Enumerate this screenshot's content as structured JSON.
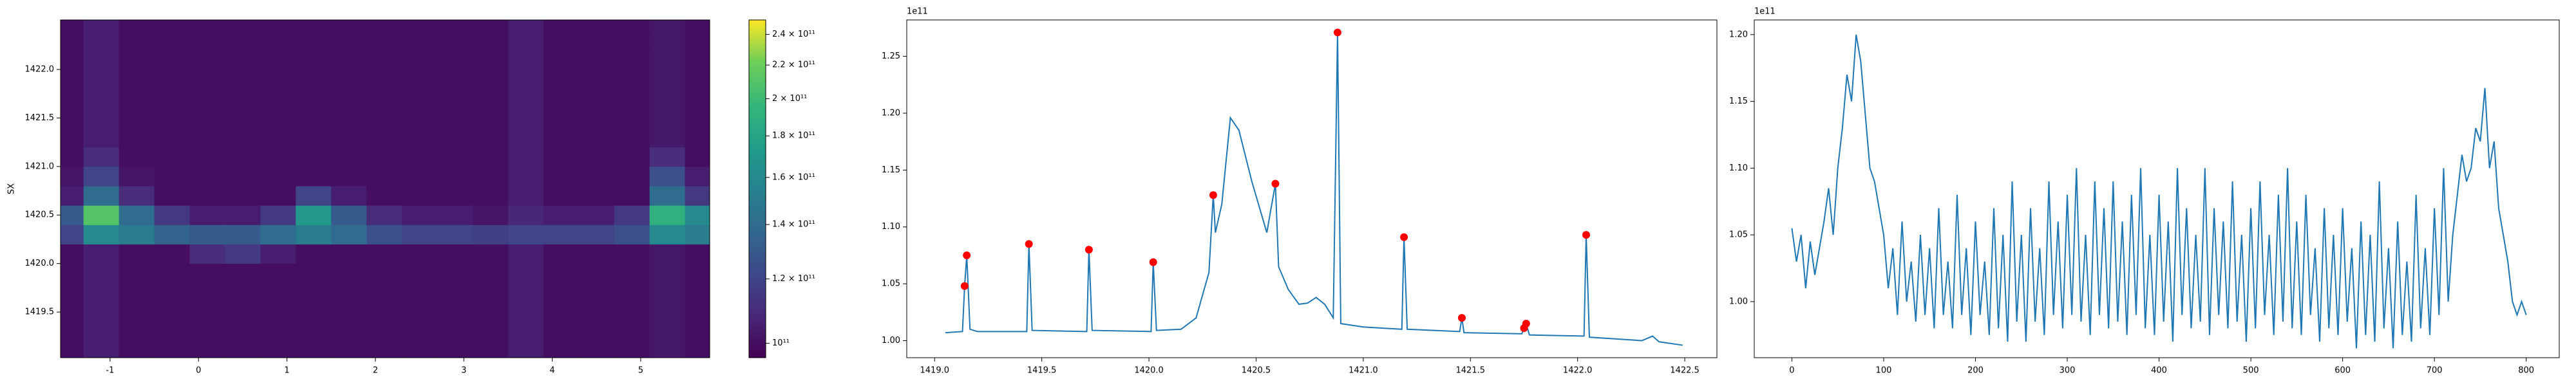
{
  "chart_data": [
    {
      "type": "heatmap",
      "ylabel": "SX",
      "x": [
        -1.5,
        -1.1,
        -0.7,
        -0.3,
        0.1,
        0.5,
        0.9,
        1.3,
        1.7,
        2.1,
        2.5,
        2.9,
        3.3,
        3.7,
        4.1,
        4.5,
        4.9,
        5.3,
        5.7
      ],
      "y": [
        1419.1,
        1419.3,
        1419.5,
        1419.7,
        1419.9,
        1420.1,
        1420.3,
        1420.5,
        1420.7,
        1420.9,
        1421.1,
        1421.3,
        1421.5,
        1421.7,
        1421.9,
        1422.1,
        1422.3,
        1422.5
      ],
      "z": [
        [
          100000000000.0,
          105000000000.0,
          100000000000.0,
          100000000000.0,
          100000000000.0,
          100000000000.0,
          100000000000.0,
          100000000000.0,
          100000000000.0,
          100000000000.0,
          100000000000.0,
          100000000000.0,
          100000000000.0,
          105000000000.0,
          100000000000.0,
          100000000000.0,
          100000000000.0,
          103000000000.0,
          100000000000.0
        ],
        [
          100000000000.0,
          105000000000.0,
          100000000000.0,
          100000000000.0,
          100000000000.0,
          100000000000.0,
          100000000000.0,
          100000000000.0,
          100000000000.0,
          100000000000.0,
          100000000000.0,
          100000000000.0,
          100000000000.0,
          105000000000.0,
          100000000000.0,
          100000000000.0,
          100000000000.0,
          103000000000.0,
          100000000000.0
        ],
        [
          100000000000.0,
          105000000000.0,
          100000000000.0,
          100000000000.0,
          100000000000.0,
          100000000000.0,
          100000000000.0,
          100000000000.0,
          100000000000.0,
          100000000000.0,
          100000000000.0,
          100000000000.0,
          100000000000.0,
          105000000000.0,
          100000000000.0,
          100000000000.0,
          100000000000.0,
          103000000000.0,
          100000000000.0
        ],
        [
          100000000000.0,
          105000000000.0,
          100000000000.0,
          100000000000.0,
          100000000000.0,
          100000000000.0,
          100000000000.0,
          100000000000.0,
          100000000000.0,
          100000000000.0,
          100000000000.0,
          100000000000.0,
          100000000000.0,
          105000000000.0,
          100000000000.0,
          100000000000.0,
          100000000000.0,
          103000000000.0,
          100000000000.0
        ],
        [
          100000000000.0,
          105000000000.0,
          100000000000.0,
          100000000000.0,
          100000000000.0,
          100000000000.0,
          100000000000.0,
          100000000000.0,
          100000000000.0,
          100000000000.0,
          100000000000.0,
          100000000000.0,
          100000000000.0,
          105000000000.0,
          100000000000.0,
          100000000000.0,
          100000000000.0,
          103000000000.0,
          100000000000.0
        ],
        [
          100000000000.0,
          105000000000.0,
          100000000000.0,
          100000000000.0,
          110000000000.0,
          115000000000.0,
          105000000000.0,
          100000000000.0,
          100000000000.0,
          100000000000.0,
          100000000000.0,
          100000000000.0,
          100000000000.0,
          105000000000.0,
          100000000000.0,
          100000000000.0,
          100000000000.0,
          103000000000.0,
          100000000000.0
        ],
        [
          120000000000.0,
          160000000000.0,
          150000000000.0,
          135000000000.0,
          130000000000.0,
          130000000000.0,
          140000000000.0,
          150000000000.0,
          140000000000.0,
          125000000000.0,
          120000000000.0,
          120000000000.0,
          118000000000.0,
          120000000000.0,
          120000000000.0,
          120000000000.0,
          125000000000.0,
          160000000000.0,
          150000000000.0
        ],
        [
          130000000000.0,
          210000000000.0,
          140000000000.0,
          115000000000.0,
          105000000000.0,
          105000000000.0,
          115000000000.0,
          170000000000.0,
          130000000000.0,
          110000000000.0,
          105000000000.0,
          105000000000.0,
          102000000000.0,
          108000000000.0,
          105000000000.0,
          105000000000.0,
          115000000000.0,
          190000000000.0,
          160000000000.0
        ],
        [
          105000000000.0,
          140000000000.0,
          110000000000.0,
          100000000000.0,
          100000000000.0,
          100000000000.0,
          100000000000.0,
          120000000000.0,
          105000000000.0,
          100000000000.0,
          100000000000.0,
          100000000000.0,
          100000000000.0,
          105000000000.0,
          100000000000.0,
          100000000000.0,
          100000000000.0,
          140000000000.0,
          115000000000.0
        ],
        [
          102000000000.0,
          120000000000.0,
          102000000000.0,
          100000000000.0,
          100000000000.0,
          100000000000.0,
          100000000000.0,
          100000000000.0,
          100000000000.0,
          100000000000.0,
          100000000000.0,
          100000000000.0,
          100000000000.0,
          105000000000.0,
          100000000000.0,
          100000000000.0,
          100000000000.0,
          125000000000.0,
          105000000000.0
        ],
        [
          100000000000.0,
          110000000000.0,
          100000000000.0,
          100000000000.0,
          100000000000.0,
          100000000000.0,
          100000000000.0,
          100000000000.0,
          100000000000.0,
          100000000000.0,
          100000000000.0,
          100000000000.0,
          100000000000.0,
          105000000000.0,
          100000000000.0,
          100000000000.0,
          100000000000.0,
          110000000000.0,
          100000000000.0
        ],
        [
          100000000000.0,
          105000000000.0,
          100000000000.0,
          100000000000.0,
          100000000000.0,
          100000000000.0,
          100000000000.0,
          100000000000.0,
          100000000000.0,
          100000000000.0,
          100000000000.0,
          100000000000.0,
          100000000000.0,
          105000000000.0,
          100000000000.0,
          100000000000.0,
          100000000000.0,
          103000000000.0,
          100000000000.0
        ],
        [
          100000000000.0,
          105000000000.0,
          100000000000.0,
          100000000000.0,
          100000000000.0,
          100000000000.0,
          100000000000.0,
          100000000000.0,
          100000000000.0,
          100000000000.0,
          100000000000.0,
          100000000000.0,
          100000000000.0,
          105000000000.0,
          100000000000.0,
          100000000000.0,
          100000000000.0,
          103000000000.0,
          100000000000.0
        ],
        [
          100000000000.0,
          105000000000.0,
          100000000000.0,
          100000000000.0,
          100000000000.0,
          100000000000.0,
          100000000000.0,
          100000000000.0,
          100000000000.0,
          100000000000.0,
          100000000000.0,
          100000000000.0,
          100000000000.0,
          105000000000.0,
          100000000000.0,
          100000000000.0,
          100000000000.0,
          103000000000.0,
          100000000000.0
        ],
        [
          100000000000.0,
          105000000000.0,
          100000000000.0,
          100000000000.0,
          100000000000.0,
          100000000000.0,
          100000000000.0,
          100000000000.0,
          100000000000.0,
          100000000000.0,
          100000000000.0,
          100000000000.0,
          100000000000.0,
          105000000000.0,
          100000000000.0,
          100000000000.0,
          100000000000.0,
          103000000000.0,
          100000000000.0
        ],
        [
          100000000000.0,
          105000000000.0,
          100000000000.0,
          100000000000.0,
          100000000000.0,
          100000000000.0,
          100000000000.0,
          100000000000.0,
          100000000000.0,
          100000000000.0,
          100000000000.0,
          100000000000.0,
          100000000000.0,
          105000000000.0,
          100000000000.0,
          100000000000.0,
          100000000000.0,
          103000000000.0,
          100000000000.0
        ],
        [
          100000000000.0,
          105000000000.0,
          100000000000.0,
          100000000000.0,
          100000000000.0,
          100000000000.0,
          100000000000.0,
          100000000000.0,
          100000000000.0,
          100000000000.0,
          100000000000.0,
          100000000000.0,
          100000000000.0,
          105000000000.0,
          100000000000.0,
          100000000000.0,
          100000000000.0,
          103000000000.0,
          100000000000.0
        ],
        [
          100000000000.0,
          105000000000.0,
          100000000000.0,
          100000000000.0,
          100000000000.0,
          100000000000.0,
          100000000000.0,
          100000000000.0,
          100000000000.0,
          100000000000.0,
          100000000000.0,
          100000000000.0,
          100000000000.0,
          105000000000.0,
          100000000000.0,
          100000000000.0,
          100000000000.0,
          103000000000.0,
          100000000000.0
        ]
      ],
      "xlim": [
        -1.56,
        5.78
      ],
      "ylim": [
        1419.03,
        1422.51
      ],
      "xticks": [
        -1,
        0,
        1,
        2,
        3,
        4,
        5
      ],
      "yticks": [
        1419.5,
        {
          "value": 1420,
          "label": "1420.0"
        },
        1420.5,
        {
          "value": 1421,
          "label": "1421.0"
        },
        1421.5,
        {
          "value": 1422,
          "label": "1422.0"
        }
      ],
      "colormap": "viridis",
      "color_scale": "log",
      "clim": [
        96000000000.0,
        250000000000.0
      ],
      "cticks": [
        {
          "value": 100000000000.0,
          "label": "10¹¹"
        },
        {
          "value": 120000000000.0,
          "label": "1.2 × 10¹¹"
        },
        {
          "value": 140000000000.0,
          "label": "1.4 × 10¹¹"
        },
        {
          "value": 160000000000.0,
          "label": "1.6 × 10¹¹"
        },
        {
          "value": 180000000000.0,
          "label": "1.8 × 10¹¹"
        },
        {
          "value": 200000000000.0,
          "label": "2 × 10¹¹"
        },
        {
          "value": 220000000000.0,
          "label": "2.2 × 10¹¹"
        },
        {
          "value": 240000000000.0,
          "label": "2.4 × 10¹¹"
        }
      ]
    },
    {
      "type": "line",
      "offset_label": "1e11",
      "color": "#1f77b4",
      "x": [
        1419.05,
        1419.13,
        1419.14,
        1419.15,
        1419.165,
        1419.2,
        1419.43,
        1419.44,
        1419.455,
        1419.71,
        1419.72,
        1419.735,
        1420.01,
        1420.02,
        1420.035,
        1420.15,
        1420.22,
        1420.28,
        1420.3,
        1420.31,
        1420.34,
        1420.38,
        1420.42,
        1420.48,
        1420.55,
        1420.59,
        1420.605,
        1420.65,
        1420.7,
        1420.74,
        1420.78,
        1420.82,
        1420.86,
        1420.88,
        1420.895,
        1421.0,
        1421.18,
        1421.19,
        1421.205,
        1421.45,
        1421.46,
        1421.47,
        1421.74,
        1421.75,
        1421.76,
        1421.775,
        1422.03,
        1422.04,
        1422.055,
        1422.3,
        1422.35,
        1422.38,
        1422.49
      ],
      "values": [
        1.007,
        1.008,
        1.048,
        1.075,
        1.01,
        1.008,
        1.008,
        1.085,
        1.009,
        1.008,
        1.08,
        1.009,
        1.008,
        1.069,
        1.009,
        1.01,
        1.02,
        1.06,
        1.128,
        1.095,
        1.12,
        1.196,
        1.185,
        1.14,
        1.095,
        1.138,
        1.065,
        1.045,
        1.032,
        1.033,
        1.038,
        1.032,
        1.02,
        1.271,
        1.015,
        1.012,
        1.01,
        1.091,
        1.01,
        1.008,
        1.02,
        1.007,
        1.006,
        1.011,
        1.015,
        1.005,
        1.004,
        1.093,
        1.003,
        1.0,
        1.004,
        0.999,
        0.996
      ],
      "peaks": {
        "color": "red",
        "x": [
          1419.14,
          1419.15,
          1419.44,
          1419.72,
          1420.02,
          1420.3,
          1420.59,
          1420.88,
          1421.19,
          1421.46,
          1421.75,
          1421.76,
          1422.04
        ],
        "values": [
          1.048,
          1.075,
          1.085,
          1.08,
          1.069,
          1.128,
          1.138,
          1.271,
          1.091,
          1.02,
          1.011,
          1.015,
          1.093
        ]
      },
      "xlim": [
        1418.87,
        1422.65
      ],
      "ylim": [
        0.985,
        1.282
      ],
      "xticks": [
        {
          "value": 1419,
          "label": "1419.0"
        },
        1419.5,
        {
          "value": 1420,
          "label": "1420.0"
        },
        1420.5,
        {
          "value": 1421,
          "label": "1421.0"
        },
        1421.5,
        {
          "value": 1422,
          "label": "1422.0"
        },
        1422.5
      ],
      "yticks": [
        {
          "value": 1.0,
          "label": "1.00"
        },
        1.05,
        {
          "value": 1.1,
          "label": "1.10"
        },
        1.15,
        {
          "value": 1.2,
          "label": "1.20"
        },
        1.25
      ]
    },
    {
      "type": "line",
      "offset_label": "1e11",
      "color": "#1f77b4",
      "x": [
        0,
        5,
        10,
        15,
        20,
        25,
        30,
        35,
        40,
        45,
        50,
        55,
        60,
        65,
        70,
        75,
        80,
        85,
        90,
        95,
        100,
        105,
        110,
        115,
        120,
        125,
        130,
        135,
        140,
        145,
        150,
        155,
        160,
        165,
        170,
        175,
        180,
        185,
        190,
        195,
        200,
        205,
        210,
        215,
        220,
        225,
        230,
        235,
        240,
        245,
        250,
        255,
        260,
        265,
        270,
        275,
        280,
        285,
        290,
        295,
        300,
        305,
        310,
        315,
        320,
        325,
        330,
        335,
        340,
        345,
        350,
        355,
        360,
        365,
        370,
        375,
        380,
        385,
        390,
        395,
        400,
        405,
        410,
        415,
        420,
        425,
        430,
        435,
        440,
        445,
        450,
        455,
        460,
        465,
        470,
        475,
        480,
        485,
        490,
        495,
        500,
        505,
        510,
        515,
        520,
        525,
        530,
        535,
        540,
        545,
        550,
        555,
        560,
        565,
        570,
        575,
        580,
        585,
        590,
        595,
        600,
        605,
        610,
        615,
        620,
        625,
        630,
        635,
        640,
        645,
        650,
        655,
        660,
        665,
        670,
        675,
        680,
        685,
        690,
        695,
        700,
        705,
        710,
        715,
        720,
        725,
        730,
        735,
        740,
        745,
        750,
        755,
        760,
        765,
        770,
        775,
        780,
        785,
        790,
        795,
        800
      ],
      "values": [
        1.055,
        1.03,
        1.05,
        1.01,
        1.045,
        1.02,
        1.04,
        1.06,
        1.085,
        1.05,
        1.1,
        1.13,
        1.17,
        1.15,
        1.2,
        1.18,
        1.14,
        1.1,
        1.09,
        1.07,
        1.05,
        1.01,
        1.04,
        0.99,
        1.06,
        1.0,
        1.03,
        0.985,
        1.05,
        0.99,
        1.04,
        0.98,
        1.07,
        0.99,
        1.03,
        0.98,
        1.08,
        0.99,
        1.04,
        0.975,
        1.06,
        0.99,
        1.03,
        0.975,
        1.07,
        0.98,
        1.05,
        0.97,
        1.09,
        0.985,
        1.05,
        0.97,
        1.07,
        0.985,
        1.04,
        0.975,
        1.09,
        0.99,
        1.06,
        0.98,
        1.08,
        0.99,
        1.1,
        0.985,
        1.05,
        0.975,
        1.09,
        0.99,
        1.07,
        0.98,
        1.09,
        0.985,
        1.06,
        0.975,
        1.08,
        0.99,
        1.1,
        0.98,
        1.05,
        0.975,
        1.08,
        0.985,
        1.06,
        0.97,
        1.1,
        0.99,
        1.07,
        0.98,
        1.05,
        0.985,
        1.1,
        0.975,
        1.07,
        0.99,
        1.06,
        0.98,
        1.09,
        0.985,
        1.05,
        0.97,
        1.07,
        0.98,
        1.09,
        0.99,
        1.05,
        0.975,
        1.08,
        0.985,
        1.1,
        0.98,
        1.06,
        0.975,
        1.08,
        0.99,
        1.04,
        0.97,
        1.07,
        0.98,
        1.05,
        0.975,
        1.07,
        0.985,
        1.04,
        0.965,
        1.06,
        0.975,
        1.05,
        0.97,
        1.09,
        0.98,
        1.04,
        0.965,
        1.06,
        0.975,
        1.03,
        0.97,
        1.08,
        0.98,
        1.04,
        0.975,
        1.07,
        0.99,
        1.1,
        1.0,
        1.05,
        1.08,
        1.11,
        1.09,
        1.1,
        1.13,
        1.12,
        1.16,
        1.1,
        1.12,
        1.07,
        1.05,
        1.03,
        1.0,
        0.99,
        1.0,
        0.99
      ],
      "xlim": [
        -41,
        836
      ],
      "ylim": [
        0.958,
        1.211
      ],
      "xticks": [
        0,
        100,
        200,
        300,
        400,
        500,
        600,
        700,
        800
      ],
      "yticks": [
        {
          "value": 1.0,
          "label": "1.00"
        },
        1.05,
        {
          "value": 1.1,
          "label": "1.10"
        },
        1.15,
        {
          "value": 1.2,
          "label": "1.20"
        }
      ]
    }
  ]
}
